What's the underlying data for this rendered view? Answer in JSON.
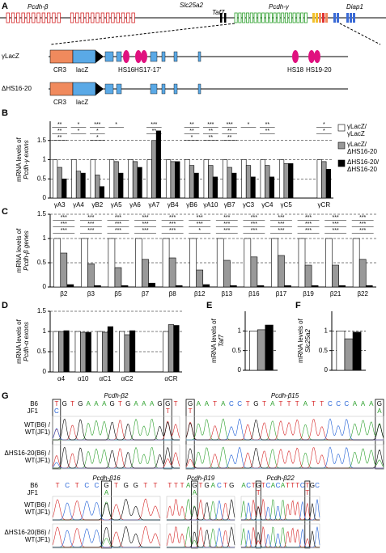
{
  "gene_map": {
    "panel": "A",
    "loci": [
      "Pcdh-β",
      "Slc25a2",
      "Taf7",
      "Pcdh-γ",
      "Diap1"
    ],
    "alleles": [
      "γLacZ",
      "ΔHS16-20"
    ],
    "elements": [
      "CR3",
      "lacZ"
    ],
    "sites": [
      "HS16",
      "HS17-17'",
      "HS18",
      "HS19-20"
    ]
  },
  "chart_data": [
    {
      "type": "bar",
      "panel": "B",
      "ylabel": [
        "mRNA levels of",
        "Pcdh-γ exons"
      ],
      "categories": [
        "γA3",
        "γA4",
        "γB2",
        "γA5",
        "γA6",
        "γA7",
        "γB4",
        "γB6",
        "γA10",
        "γB7",
        "γC3",
        "γC4",
        "γC5",
        null,
        "γCR"
      ],
      "series": [
        {
          "name": "γLacZ/γLacZ",
          "color": "#ffffff",
          "values": [
            1,
            1,
            1,
            1,
            1,
            1,
            1,
            1,
            1,
            1,
            1,
            1,
            1,
            null,
            1
          ]
        },
        {
          "name": "γLacZ/ΔHS16-20",
          "color": "#999999",
          "values": [
            0.8,
            0.7,
            0.6,
            0.95,
            0.95,
            1.5,
            0.95,
            0.85,
            0.85,
            0.8,
            0.85,
            0.85,
            0.9,
            null,
            0.95
          ]
        },
        {
          "name": "ΔHS16-20/ΔHS16-20",
          "color": "#000000",
          "values": [
            0.5,
            0.65,
            0.3,
            0.65,
            0.8,
            1.75,
            0.95,
            0.65,
            0.55,
            0.65,
            0.55,
            0.55,
            0.9,
            null,
            0.75
          ]
        }
      ],
      "significance": [
        [
          "**",
          "**",
          "**"
        ],
        [
          "*",
          "*"
        ],
        [
          "***",
          "*",
          "*"
        ],
        [
          "*"
        ],
        [],
        [
          "***",
          "**"
        ],
        [],
        [
          "**",
          "**",
          "*"
        ],
        [
          "***",
          "**",
          "**"
        ],
        [
          "***",
          "**",
          "**"
        ],
        [
          "*"
        ],
        [
          "**",
          "**"
        ],
        [],
        [],
        [
          "*",
          "*"
        ]
      ],
      "ylim": [
        0,
        2
      ],
      "yticks": [
        0,
        0.5,
        1,
        1.5
      ],
      "grid": true,
      "legend": "right"
    },
    {
      "type": "bar",
      "panel": "C",
      "ylabel": [
        "mRNA levels of",
        "Pcdh-β genes"
      ],
      "categories": [
        "β2",
        "β3",
        "β5",
        "β7",
        "β8",
        "β12",
        "β13",
        "β16",
        "β17",
        "β19",
        "β21",
        "β22"
      ],
      "series": [
        {
          "name": "γLacZ/γLacZ",
          "color": "#ffffff",
          "values": [
            1,
            1,
            1,
            1,
            1,
            1,
            1,
            1,
            1,
            1,
            1,
            1
          ]
        },
        {
          "name": "γLacZ/ΔHS16-20",
          "color": "#999999",
          "values": [
            0.7,
            0.48,
            0.4,
            0.57,
            0.6,
            0.35,
            0.55,
            0.62,
            0.65,
            0.45,
            0.45,
            0.57
          ]
        },
        {
          "name": "ΔHS16-20/ΔHS16-20",
          "color": "#000000",
          "values": [
            0.05,
            0.03,
            0.03,
            0.08,
            0.03,
            0.05,
            0.03,
            0.03,
            0.03,
            0.03,
            0.03,
            0.03
          ]
        }
      ],
      "significance": [
        [
          "***",
          "***",
          "***"
        ],
        [
          "***",
          "***",
          "***"
        ],
        [
          "***",
          "***",
          "***"
        ],
        [
          "***",
          "***",
          "***"
        ],
        [
          "***",
          "***",
          "***"
        ],
        [
          "***",
          "***",
          "*"
        ],
        [
          "***",
          "***",
          "***"
        ],
        [
          "***",
          "***",
          "***"
        ],
        [
          "***",
          "***",
          "***"
        ],
        [
          "***",
          "***",
          "***"
        ],
        [
          "***",
          "***",
          "***"
        ],
        [
          "***",
          "***",
          "***"
        ]
      ],
      "ylim": [
        0,
        1.5
      ],
      "yticks": [
        0,
        0.5,
        1,
        1.5
      ],
      "grid": true
    },
    {
      "type": "bar",
      "panel": "D",
      "ylabel": [
        "mRNA levels of",
        "Pcdh-α exons"
      ],
      "categories": [
        "α4",
        "α10",
        "αC1",
        "αC2",
        null,
        "αCR"
      ],
      "series": [
        {
          "name": "γLacZ/γLacZ",
          "color": "#ffffff",
          "values": [
            1,
            1,
            1,
            1,
            null,
            1
          ]
        },
        {
          "name": "γLacZ/ΔHS16-20",
          "color": "#999999",
          "values": [
            1.0,
            0.98,
            0.98,
            0.92,
            null,
            1.17
          ]
        },
        {
          "name": "ΔHS16-20/ΔHS16-20",
          "color": "#000000",
          "values": [
            1.02,
            0.98,
            1.12,
            1.02,
            null,
            1.15
          ]
        }
      ],
      "ylim": [
        0,
        1.5
      ],
      "yticks": [
        0,
        0.5,
        1,
        1.5
      ],
      "grid": true
    },
    {
      "type": "bar",
      "panel": "E",
      "ylabel": [
        "mRNA levels of",
        "Taf7"
      ],
      "categories": [
        null
      ],
      "series": [
        {
          "name": "γLacZ/γLacZ",
          "color": "#ffffff",
          "values": [
            1
          ]
        },
        {
          "name": "γLacZ/ΔHS16-20",
          "color": "#999999",
          "values": [
            1.03
          ]
        },
        {
          "name": "ΔHS16-20/ΔHS16-20",
          "color": "#000000",
          "values": [
            1.15
          ]
        }
      ],
      "ylim": [
        0,
        1.5
      ],
      "yticks": [
        0,
        0.5,
        1
      ],
      "grid": true
    },
    {
      "type": "bar",
      "panel": "F",
      "ylabel": [
        "mRNA levels of",
        "Slc25a2"
      ],
      "categories": [
        null
      ],
      "series": [
        {
          "name": "γLacZ/γLacZ",
          "color": "#ffffff",
          "values": [
            1
          ]
        },
        {
          "name": "γLacZ/ΔHS16-20",
          "color": "#999999",
          "values": [
            0.8
          ]
        },
        {
          "name": "ΔHS16-20/ΔHS16-20",
          "color": "#000000",
          "values": [
            0.97
          ]
        }
      ],
      "ylim": [
        0,
        1.5
      ],
      "yticks": [
        0,
        0.5,
        1
      ],
      "grid": true
    }
  ],
  "chromatograms": {
    "panel": "G",
    "strains": [
      "B6",
      "JF1"
    ],
    "rows": [
      [
        "WT(B6) /",
        "WT(JF1)"
      ],
      [
        "ΔHS16-20(B6) /",
        "WT(JF1)"
      ]
    ],
    "genes": [
      {
        "title": "Pcdh-β2",
        "b6": [
          "T",
          "G",
          "T",
          "G",
          "A",
          "A",
          "A",
          "G",
          "T",
          "G",
          "A",
          "A",
          "A",
          "G",
          "G",
          "T"
        ],
        "jf1": [
          "C",
          null,
          null,
          null,
          null,
          null,
          null,
          null,
          null,
          null,
          null,
          null,
          null,
          null,
          "T",
          null
        ]
      },
      {
        "title": "Pcdh-β15",
        "b6": [
          "G",
          "A",
          "A",
          "T",
          "A",
          "C",
          "C",
          "T",
          "G",
          "T",
          "A",
          "T",
          "T",
          "T",
          "A",
          "T",
          "T",
          "C",
          "C",
          "C",
          "A",
          "A",
          "A",
          "G"
        ],
        "jf1": [
          "T",
          null,
          null,
          null,
          null,
          null,
          null,
          null,
          null,
          null,
          null,
          null,
          null,
          null,
          null,
          null,
          null,
          null,
          null,
          null,
          null,
          null,
          null,
          "A"
        ]
      },
      {
        "title": "Pcdh-β16",
        "b6": [
          "T",
          "C",
          "T",
          "C",
          "C",
          "G",
          "T",
          "G",
          "G",
          "T",
          "T"
        ],
        "jf1": [
          null,
          null,
          null,
          null,
          null,
          "A",
          null,
          null,
          null,
          null,
          null
        ]
      },
      {
        "title": "Pcdh-β19",
        "b6": [
          "T",
          "T",
          "T",
          "A",
          "G",
          "T",
          "G",
          "A",
          "C",
          "T",
          "G"
        ],
        "jf1": [
          null,
          null,
          null,
          null,
          "A",
          null,
          null,
          null,
          null,
          null,
          null
        ]
      },
      {
        "title": "Pcdh-β22",
        "b6": [
          "A",
          "C",
          "T",
          "G",
          "T",
          "C",
          "A",
          "C",
          "A",
          "T",
          "T",
          "T",
          "C",
          "T",
          "G",
          "C"
        ],
        "jf1": [
          null,
          null,
          null,
          "T",
          null,
          null,
          null,
          null,
          null,
          null,
          null,
          null,
          null,
          "T",
          null,
          null
        ]
      }
    ]
  }
}
